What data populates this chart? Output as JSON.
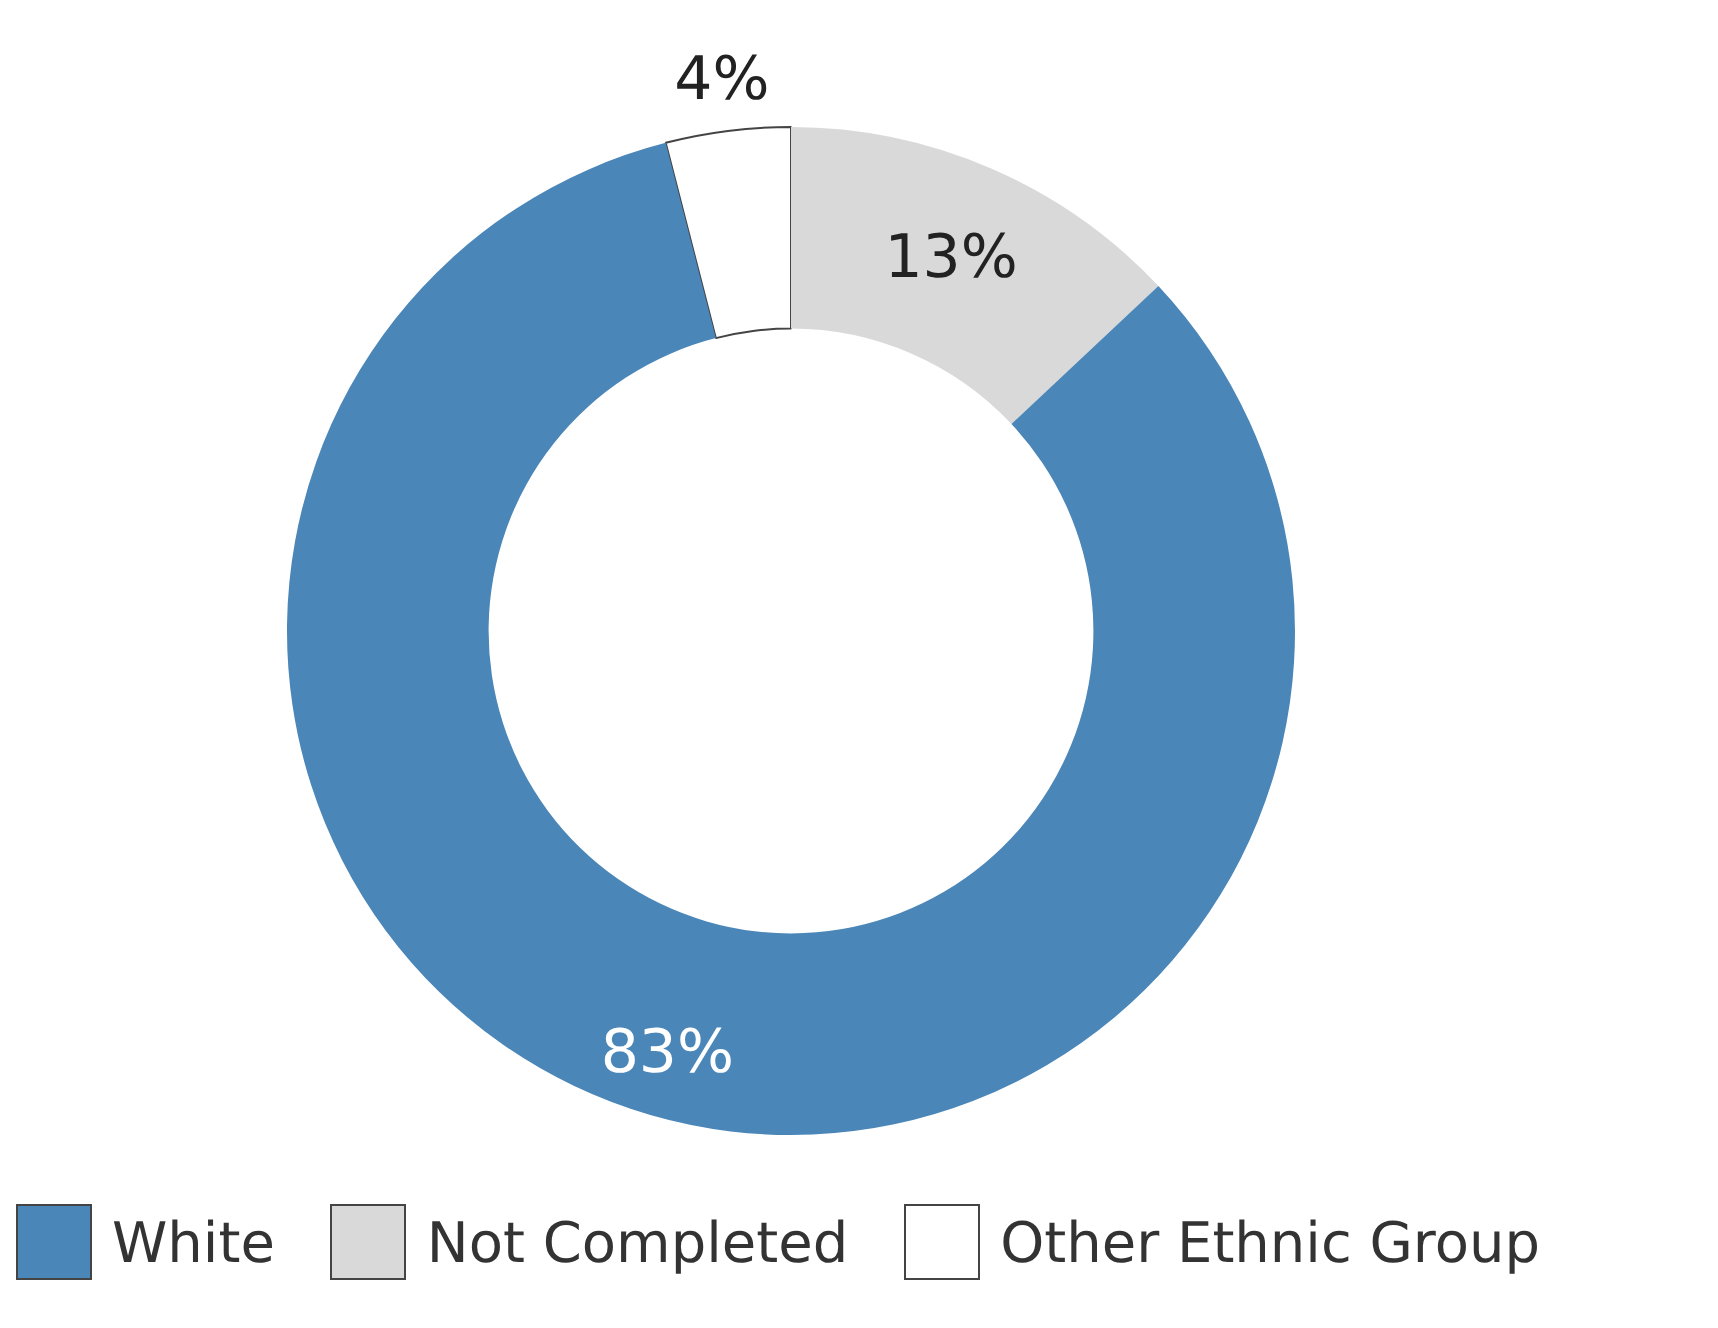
{
  "chart_data": {
    "type": "donut",
    "categories": [
      "White",
      "Not Completed",
      "Other Ethnic Group"
    ],
    "values": [
      83,
      13,
      4
    ],
    "colors": [
      "#4a86b8",
      "#d9d9d9",
      "#ffffff"
    ],
    "value_labels": [
      "83%",
      "13%",
      "4%"
    ],
    "legend": "bottom"
  }
}
